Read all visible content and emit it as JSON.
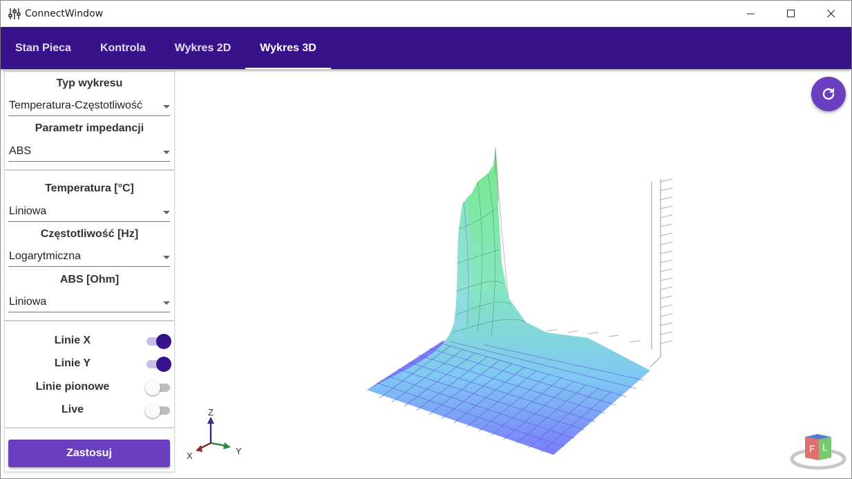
{
  "window": {
    "title": "ConnectWindow",
    "icons": {
      "app": "sliders-icon",
      "minimize": "minimize-icon",
      "maximize": "maximize-icon",
      "close": "close-icon"
    }
  },
  "tabs": [
    {
      "label": "Stan Pieca"
    },
    {
      "label": "Kontrola"
    },
    {
      "label": "Wykres 2D"
    },
    {
      "label": "Wykres 3D"
    }
  ],
  "active_tab": "Wykres 3D",
  "panel": {
    "chart_type": {
      "label": "Typ wykresu",
      "value": "Temperatura-Częstotliwość"
    },
    "impedance": {
      "label": "Parametr impedancji",
      "value": "ABS"
    },
    "temperature": {
      "label": "Temperatura [°C]",
      "value": "Liniowa"
    },
    "frequency": {
      "label": "Częstotliwość [Hz]",
      "value": "Logarytmiczna"
    },
    "abs": {
      "label": "ABS [Ohm]",
      "value": "Liniowa"
    },
    "toggles": [
      {
        "label": "Linie X",
        "on": true
      },
      {
        "label": "Linie Y",
        "on": true
      },
      {
        "label": "Linie pionowe",
        "on": false
      },
      {
        "label": "Live",
        "on": false
      }
    ],
    "apply_label": "Zastosuj"
  },
  "plot": {
    "axis_gizmo": {
      "z": "Z",
      "x": "X",
      "y": "Y"
    },
    "view_cube": {
      "front": "F",
      "left": "L"
    },
    "icons": {
      "refresh": "refresh-icon",
      "view_cube": "view-cube-icon"
    }
  },
  "colors": {
    "primary": "#37128a",
    "accent": "#6a3fc0",
    "surface_low": "#7b7bf8",
    "surface_high": "#7fe9a0"
  }
}
